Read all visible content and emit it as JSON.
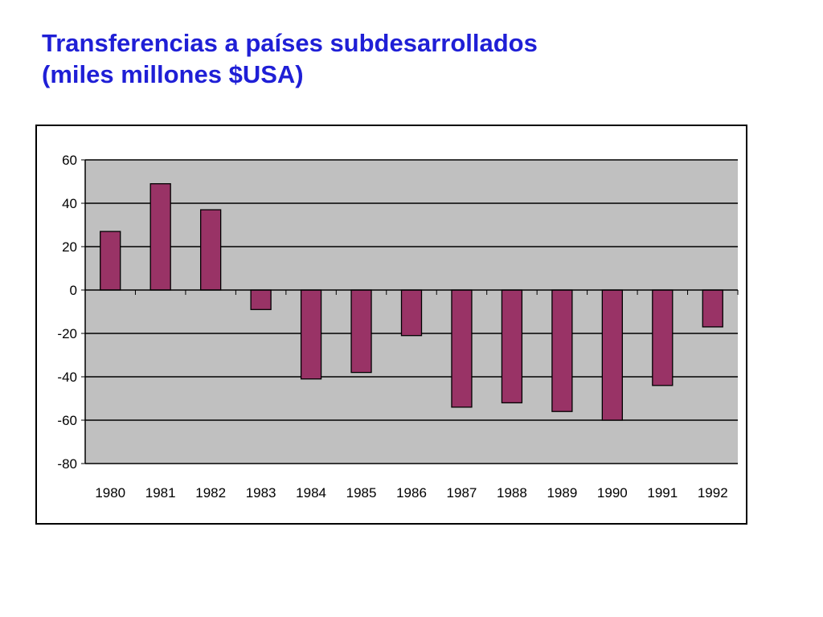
{
  "slide": {
    "title_line1": "Transferencias a países subdesarrollados",
    "title_line2": "(miles millones $USA)"
  },
  "colors": {
    "title": "#1f1fd6",
    "bar_fill": "#993366",
    "plot_background": "#c0c0c0",
    "gridline": "#000000"
  },
  "chart_data": {
    "type": "bar",
    "title": "",
    "xlabel": "",
    "ylabel": "",
    "categories": [
      "1980",
      "1981",
      "1982",
      "1983",
      "1984",
      "1985",
      "1986",
      "1987",
      "1988",
      "1989",
      "1990",
      "1991",
      "1992"
    ],
    "values": [
      27,
      49,
      37,
      -9,
      -41,
      -38,
      -21,
      -54,
      -52,
      -56,
      -60,
      -44,
      -17
    ],
    "ylim": [
      -80,
      60
    ],
    "yticks": [
      60,
      40,
      20,
      0,
      -20,
      -40,
      -60,
      -80
    ],
    "grid": true,
    "legend": "none"
  }
}
